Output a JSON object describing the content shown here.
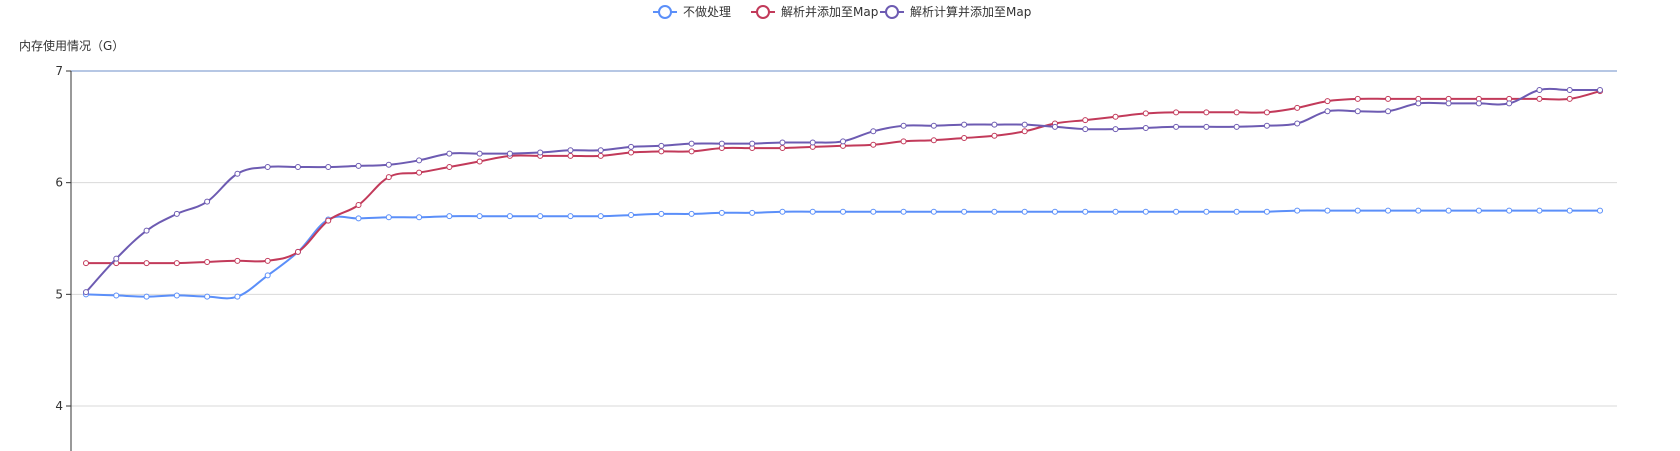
{
  "chart_data": {
    "type": "line",
    "y_axis_name": "内存使用情况（G）",
    "ylim": [
      3.55,
      7
    ],
    "y_ticks": [
      4,
      5,
      6,
      7
    ],
    "grid": true,
    "legend_position": "top-center",
    "marker": "hollow-circle",
    "smooth": true,
    "series": [
      {
        "name": "不做处理",
        "color": "#5b8ff9",
        "values": [
          5.0,
          4.99,
          4.98,
          4.99,
          4.98,
          4.98,
          5.17,
          5.38,
          5.67,
          5.68,
          5.69,
          5.69,
          5.7,
          5.7,
          5.7,
          5.7,
          5.7,
          5.7,
          5.71,
          5.72,
          5.72,
          5.73,
          5.73,
          5.74,
          5.74,
          5.74,
          5.74,
          5.74,
          5.74,
          5.74,
          5.74,
          5.74,
          5.74,
          5.74,
          5.74,
          5.74,
          5.74,
          5.74,
          5.74,
          5.74,
          5.75,
          5.75,
          5.75,
          5.75,
          5.75,
          5.75,
          5.75,
          5.75,
          5.75,
          5.75,
          5.75
        ]
      },
      {
        "name": "解析并添加至Map",
        "color": "#c23a5a",
        "values": [
          5.28,
          5.28,
          5.28,
          5.28,
          5.29,
          5.3,
          5.3,
          5.38,
          5.66,
          5.8,
          6.05,
          6.09,
          6.14,
          6.19,
          6.24,
          6.24,
          6.24,
          6.24,
          6.27,
          6.28,
          6.28,
          6.31,
          6.31,
          6.31,
          6.32,
          6.33,
          6.34,
          6.37,
          6.38,
          6.4,
          6.42,
          6.46,
          6.53,
          6.56,
          6.59,
          6.62,
          6.63,
          6.63,
          6.63,
          6.63,
          6.67,
          6.73,
          6.75,
          6.75,
          6.75,
          6.75,
          6.75,
          6.75,
          6.75,
          6.75,
          6.82
        ]
      },
      {
        "name": "解析计算并添加至Map",
        "color": "#6d5bb2",
        "values": [
          5.02,
          5.32,
          5.57,
          5.72,
          5.83,
          6.08,
          6.14,
          6.14,
          6.14,
          6.15,
          6.16,
          6.2,
          6.26,
          6.26,
          6.26,
          6.27,
          6.29,
          6.29,
          6.32,
          6.33,
          6.35,
          6.35,
          6.35,
          6.36,
          6.36,
          6.37,
          6.46,
          6.51,
          6.51,
          6.52,
          6.52,
          6.52,
          6.5,
          6.48,
          6.48,
          6.49,
          6.5,
          6.5,
          6.5,
          6.51,
          6.53,
          6.64,
          6.64,
          6.64,
          6.71,
          6.71,
          6.71,
          6.71,
          6.83,
          6.83,
          6.83
        ]
      }
    ]
  }
}
